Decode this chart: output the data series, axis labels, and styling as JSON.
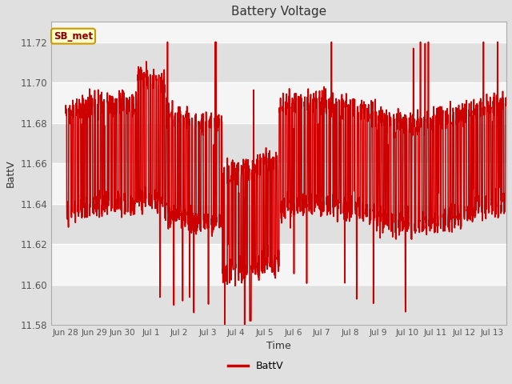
{
  "title": "Battery Voltage",
  "xlabel": "Time",
  "ylabel": "BattV",
  "legend_label": "BattV",
  "line_color": "#cc0000",
  "line_width": 1.2,
  "ylim": [
    11.58,
    11.73
  ],
  "yticks": [
    11.58,
    11.6,
    11.62,
    11.64,
    11.66,
    11.68,
    11.7,
    11.72
  ],
  "bg_color": "#e0e0e0",
  "plot_bg_light": "#f5f5f5",
  "plot_bg_dark": "#e0e0e0",
  "grid_color": "#cccccc",
  "annotation_text": "SB_met",
  "annotation_bg": "#ffffcc",
  "annotation_border": "#cc9900",
  "annotation_text_color": "#8b0000",
  "xtick_labels": [
    "Jun 28",
    "Jun 29",
    "Jun 30",
    "Jul 1",
    "Jul 2",
    "Jul 3",
    "Jul 4",
    "Jul 5",
    "Jul 6",
    "Jul 7",
    "Jul 8",
    "Jul 9",
    "Jul 10",
    "Jul 11",
    "Jul 12",
    "Jul 13"
  ],
  "xtick_positions": [
    0,
    1,
    2,
    3,
    4,
    5,
    6,
    7,
    8,
    9,
    10,
    11,
    12,
    13,
    14,
    15
  ],
  "xlim": [
    -0.5,
    15.5
  ]
}
